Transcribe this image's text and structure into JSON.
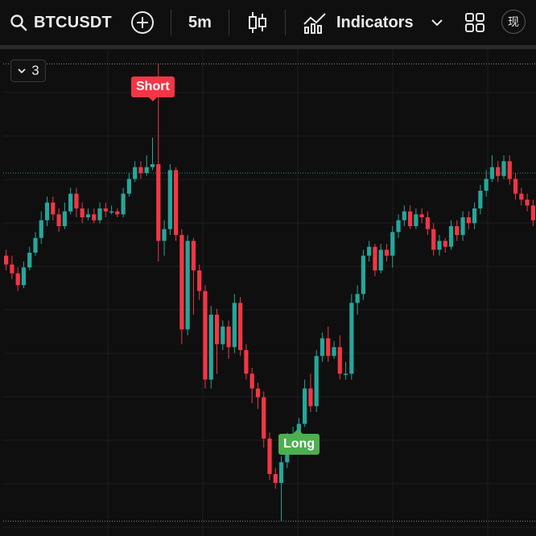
{
  "toolbar": {
    "symbol": "BTCUSDT",
    "interval": "5m",
    "indicators_label": "Indicators",
    "avatar_text": "现"
  },
  "chart": {
    "collapse_count": "3",
    "short_marker": "Short",
    "long_marker": "Long",
    "colors": {
      "up": "#26a69a",
      "down": "#f23645",
      "background": "#0f0f0f",
      "grid": "#1e1e1e"
    }
  },
  "icons": [
    "search-icon",
    "add-circle-icon",
    "candles-icon",
    "indicators-chart-icon",
    "chevron-down-icon",
    "layout-grid-icon"
  ],
  "chart_data": {
    "type": "candlestick",
    "candles": [
      [
        0.6,
        0.57,
        0.62,
        0.55
      ],
      [
        0.57,
        0.54,
        0.6,
        0.52
      ],
      [
        0.54,
        0.5,
        0.56,
        0.48
      ],
      [
        0.5,
        0.56,
        0.58,
        0.49
      ],
      [
        0.56,
        0.61,
        0.63,
        0.55
      ],
      [
        0.61,
        0.66,
        0.68,
        0.6
      ],
      [
        0.66,
        0.72,
        0.75,
        0.64
      ],
      [
        0.72,
        0.78,
        0.8,
        0.7
      ],
      [
        0.78,
        0.74,
        0.8,
        0.72
      ],
      [
        0.74,
        0.7,
        0.76,
        0.68
      ],
      [
        0.7,
        0.75,
        0.78,
        0.69
      ],
      [
        0.75,
        0.81,
        0.83,
        0.74
      ],
      [
        0.81,
        0.76,
        0.83,
        0.73
      ],
      [
        0.76,
        0.73,
        0.78,
        0.71
      ],
      [
        0.73,
        0.74,
        0.76,
        0.72
      ],
      [
        0.74,
        0.72,
        0.76,
        0.71
      ],
      [
        0.72,
        0.76,
        0.78,
        0.71
      ],
      [
        0.76,
        0.75,
        0.78,
        0.73
      ],
      [
        0.75,
        0.75,
        0.77,
        0.74
      ],
      [
        0.75,
        0.74,
        0.76,
        0.73
      ],
      [
        0.74,
        0.81,
        0.83,
        0.73
      ],
      [
        0.81,
        0.86,
        0.88,
        0.8
      ],
      [
        0.86,
        0.9,
        0.92,
        0.85
      ],
      [
        0.9,
        0.88,
        0.92,
        0.86
      ],
      [
        0.88,
        0.9,
        0.94,
        0.87
      ],
      [
        0.9,
        0.91,
        1.0,
        0.89
      ],
      [
        0.91,
        0.65,
        1.25,
        0.58
      ],
      [
        0.65,
        0.69,
        0.72,
        0.6
      ],
      [
        0.69,
        0.89,
        0.91,
        0.67
      ],
      [
        0.89,
        0.67,
        0.9,
        0.65
      ],
      [
        0.67,
        0.35,
        0.69,
        0.3
      ],
      [
        0.35,
        0.65,
        0.67,
        0.33
      ],
      [
        0.65,
        0.55,
        0.66,
        0.4
      ],
      [
        0.55,
        0.48,
        0.57,
        0.45
      ],
      [
        0.48,
        0.18,
        0.5,
        0.15
      ],
      [
        0.18,
        0.4,
        0.43,
        0.15
      ],
      [
        0.4,
        0.3,
        0.42,
        0.2
      ],
      [
        0.3,
        0.36,
        0.38,
        0.28
      ],
      [
        0.36,
        0.29,
        0.38,
        0.25
      ],
      [
        0.29,
        0.44,
        0.47,
        0.27
      ],
      [
        0.44,
        0.28,
        0.46,
        0.26
      ],
      [
        0.28,
        0.2,
        0.3,
        0.18
      ],
      [
        0.2,
        0.15,
        0.22,
        0.1
      ],
      [
        0.15,
        0.12,
        0.17,
        0.08
      ],
      [
        0.12,
        -0.02,
        0.14,
        -0.05
      ],
      [
        -0.02,
        -0.14,
        0.0,
        -0.16
      ],
      [
        -0.14,
        -0.17,
        -0.12,
        -0.19
      ],
      [
        -0.17,
        -0.1,
        -0.08,
        -0.3
      ],
      [
        -0.1,
        -0.02,
        0.0,
        -0.12
      ],
      [
        -0.02,
        -0.01,
        0.02,
        -0.05
      ],
      [
        -0.01,
        0.03,
        0.05,
        -0.03
      ],
      [
        0.03,
        0.15,
        0.18,
        0.02
      ],
      [
        0.15,
        0.09,
        0.2,
        0.07
      ],
      [
        0.09,
        0.26,
        0.28,
        0.07
      ],
      [
        0.26,
        0.32,
        0.34,
        0.24
      ],
      [
        0.32,
        0.26,
        0.36,
        0.24
      ],
      [
        0.26,
        0.29,
        0.31,
        0.25
      ],
      [
        0.29,
        0.2,
        0.33,
        0.18
      ],
      [
        0.2,
        0.2,
        0.24,
        0.18
      ],
      [
        0.2,
        0.44,
        0.47,
        0.18
      ],
      [
        0.44,
        0.47,
        0.5,
        0.4
      ],
      [
        0.47,
        0.6,
        0.62,
        0.45
      ],
      [
        0.6,
        0.63,
        0.65,
        0.58
      ],
      [
        0.63,
        0.55,
        0.64,
        0.53
      ],
      [
        0.55,
        0.62,
        0.64,
        0.54
      ],
      [
        0.62,
        0.6,
        0.64,
        0.58
      ],
      [
        0.6,
        0.68,
        0.7,
        0.56
      ],
      [
        0.68,
        0.72,
        0.74,
        0.66
      ],
      [
        0.72,
        0.75,
        0.77,
        0.7
      ],
      [
        0.75,
        0.7,
        0.77,
        0.69
      ],
      [
        0.7,
        0.74,
        0.76,
        0.69
      ],
      [
        0.74,
        0.73,
        0.76,
        0.71
      ],
      [
        0.73,
        0.69,
        0.75,
        0.67
      ],
      [
        0.69,
        0.62,
        0.71,
        0.6
      ],
      [
        0.62,
        0.65,
        0.67,
        0.6
      ],
      [
        0.65,
        0.63,
        0.66,
        0.61
      ],
      [
        0.63,
        0.7,
        0.72,
        0.62
      ],
      [
        0.7,
        0.67,
        0.72,
        0.65
      ],
      [
        0.67,
        0.73,
        0.75,
        0.65
      ],
      [
        0.73,
        0.71,
        0.75,
        0.69
      ],
      [
        0.71,
        0.76,
        0.78,
        0.69
      ],
      [
        0.76,
        0.82,
        0.84,
        0.74
      ],
      [
        0.82,
        0.86,
        0.89,
        0.8
      ],
      [
        0.86,
        0.9,
        0.94,
        0.85
      ],
      [
        0.9,
        0.87,
        0.92,
        0.85
      ],
      [
        0.87,
        0.92,
        0.94,
        0.86
      ],
      [
        0.92,
        0.86,
        0.94,
        0.84
      ],
      [
        0.86,
        0.81,
        0.88,
        0.79
      ],
      [
        0.81,
        0.79,
        0.83,
        0.77
      ],
      [
        0.79,
        0.77,
        0.81,
        0.75
      ],
      [
        0.77,
        0.72,
        0.79,
        0.7
      ]
    ],
    "ylim": [
      -0.35,
      1.3
    ],
    "reference_lines": [
      1.25,
      0.88,
      -0.3
    ],
    "grid": true
  }
}
